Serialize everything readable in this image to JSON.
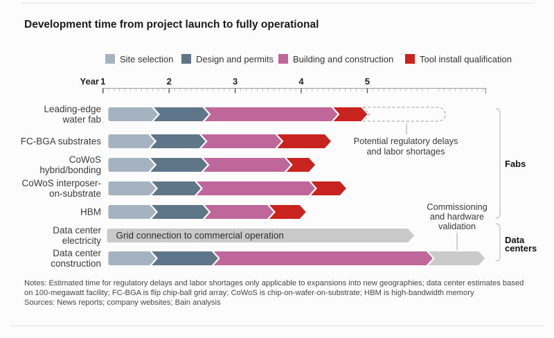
{
  "title": "Development time from project launch to fully operational",
  "legend": [
    {
      "label": "Site selection",
      "phase": "site"
    },
    {
      "label": "Design and permits",
      "phase": "design"
    },
    {
      "label": "Building and construction",
      "phase": "build"
    },
    {
      "label": "Tool install qualification",
      "phase": "tool"
    }
  ],
  "axis": {
    "unit_label": "Year",
    "tick_labels": [
      "1",
      "2",
      "3",
      "4",
      "5"
    ],
    "minor_ticks_per_year": 12,
    "span_years": 5.8
  },
  "chart_data": {
    "type": "bar",
    "orientation": "horizontal",
    "x_unit": "years from project launch (axis labeled Year 1 to 5)",
    "phases": {
      "site": "Site selection",
      "design": "Design and permits",
      "build": "Building and construction",
      "tool": "Tool install qualification",
      "gray": "Unlabeled gray phase"
    },
    "rows": [
      {
        "label_lines": [
          "Leading-edge",
          "water fab"
        ],
        "group": "Fabs",
        "segments": [
          {
            "phase": "site",
            "start": 0.08,
            "end": 0.83
          },
          {
            "phase": "design",
            "start": 0.83,
            "end": 1.6
          },
          {
            "phase": "build",
            "start": 1.6,
            "end": 3.55
          },
          {
            "phase": "tool",
            "start": 3.55,
            "end": 4.0
          }
        ],
        "dashed_extension": {
          "start": 4.0,
          "end": 5.18,
          "label": "Potential regulatory delays and labor shortages"
        }
      },
      {
        "label_lines": [
          "FC-BGA substrates"
        ],
        "group": "Fabs",
        "segments": [
          {
            "phase": "site",
            "start": 0.08,
            "end": 0.78
          },
          {
            "phase": "design",
            "start": 0.78,
            "end": 1.55
          },
          {
            "phase": "build",
            "start": 1.55,
            "end": 2.7
          },
          {
            "phase": "tool",
            "start": 2.7,
            "end": 3.45
          }
        ]
      },
      {
        "label_lines": [
          "CoWoS",
          "hybrid/bonding"
        ],
        "group": "Fabs",
        "segments": [
          {
            "phase": "site",
            "start": 0.08,
            "end": 0.78
          },
          {
            "phase": "design",
            "start": 0.78,
            "end": 1.58
          },
          {
            "phase": "build",
            "start": 1.58,
            "end": 2.84
          },
          {
            "phase": "tool",
            "start": 2.84,
            "end": 3.21
          }
        ]
      },
      {
        "label_lines": [
          "CoWoS interposer-",
          "on-substrate"
        ],
        "group": "Fabs",
        "segments": [
          {
            "phase": "site",
            "start": 0.08,
            "end": 0.8
          },
          {
            "phase": "design",
            "start": 0.8,
            "end": 1.48
          },
          {
            "phase": "build",
            "start": 1.48,
            "end": 3.21
          },
          {
            "phase": "tool",
            "start": 3.21,
            "end": 3.68
          }
        ]
      },
      {
        "label_lines": [
          "HBM"
        ],
        "group": "Fabs",
        "segments": [
          {
            "phase": "site",
            "start": 0.08,
            "end": 0.8
          },
          {
            "phase": "design",
            "start": 0.8,
            "end": 1.6
          },
          {
            "phase": "build",
            "start": 1.6,
            "end": 2.58
          },
          {
            "phase": "tool",
            "start": 2.58,
            "end": 3.07
          }
        ]
      },
      {
        "label_lines": [
          "Data center",
          "electricity"
        ],
        "group": "Data centers",
        "segments": [
          {
            "phase": "gray",
            "start": 0.06,
            "end": 4.71,
            "text": "Grid connection to commercial operation"
          }
        ]
      },
      {
        "label_lines": [
          "Data center",
          "construction"
        ],
        "group": "Data centers",
        "segments": [
          {
            "phase": "site",
            "start": 0.08,
            "end": 0.8
          },
          {
            "phase": "design",
            "start": 0.8,
            "end": 1.74
          },
          {
            "phase": "build",
            "start": 1.74,
            "end": 4.99
          },
          {
            "phase": "gray",
            "start": 4.99,
            "end": 5.78
          }
        ]
      }
    ]
  },
  "annotations": {
    "regulatory": {
      "lines": [
        "Potential regulatory delays",
        "and labor shortages"
      ]
    },
    "commissioning": {
      "lines": [
        "Commissioning",
        "and hardware",
        "validation"
      ]
    }
  },
  "groups": [
    {
      "label": "Fabs"
    },
    {
      "label": "Data centers"
    }
  ],
  "notes": {
    "lines": [
      "Notes: Estimated time for regulatory delays and labor shortages only applicable to expansions into new geographies; data center estimates based",
      "on 100-megawatt facility; FC-BGA is flip chip-ball grid array; CoWoS is chip-on-wafer-on-substrate; HBM is high-bandwidth memory"
    ],
    "sources": "Sources: News reports; company websites; Bain analysis"
  },
  "colors": {
    "site": "#a5b3c1",
    "design": "#5f7689",
    "build": "#bf679a",
    "tool": "#c8231f",
    "gray": "#cacaca",
    "dashed_outline": "#9b9b9b",
    "bracket": "#c7c7c7",
    "title_text": "#1a1a1a",
    "label_text": "#3a3a3a"
  }
}
